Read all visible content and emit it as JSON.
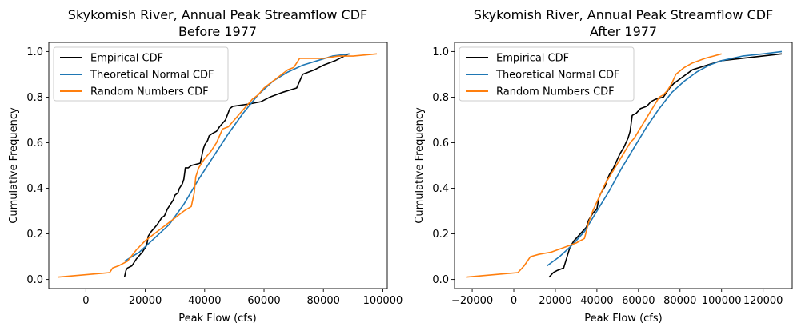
{
  "chart_data": [
    {
      "type": "line",
      "title": "Skykomish River, Annual Peak Streamflow CDF",
      "subtitle": "Before 1977",
      "xlabel": "Peak Flow (cfs)",
      "ylabel": "Cumulative Frequency",
      "xlim": [
        -12500,
        101500
      ],
      "ylim": [
        -0.04,
        1.04
      ],
      "xticks": [
        0,
        20000,
        40000,
        60000,
        80000,
        100000
      ],
      "yticks": [
        0.0,
        0.2,
        0.4,
        0.6,
        0.8,
        1.0
      ],
      "xtick_labels": [
        "0",
        "20000",
        "40000",
        "60000",
        "80000",
        "100000"
      ],
      "ytick_labels": [
        "0.0",
        "0.2",
        "0.4",
        "0.6",
        "0.8",
        "1.0"
      ],
      "grid": false,
      "legend": "top-left",
      "series": [
        {
          "name": "Empirical CDF",
          "color": "#000000",
          "x": [
            13000,
            13500,
            14000,
            15500,
            17000,
            19000,
            20500,
            21000,
            22000,
            24000,
            25500,
            26500,
            27500,
            28500,
            29500,
            30000,
            31000,
            31500,
            32500,
            33000,
            33500,
            34500,
            35500,
            38500,
            39000,
            39500,
            40000,
            41000,
            41500,
            42500,
            44000,
            45000,
            47000,
            48500,
            49500,
            55000,
            59000,
            62000,
            66000,
            71000,
            72000,
            73000,
            77000,
            80000,
            84000,
            88500
          ],
          "y": [
            0.01,
            0.04,
            0.05,
            0.06,
            0.09,
            0.12,
            0.15,
            0.19,
            0.21,
            0.24,
            0.27,
            0.28,
            0.31,
            0.33,
            0.35,
            0.37,
            0.38,
            0.4,
            0.42,
            0.44,
            0.49,
            0.49,
            0.5,
            0.51,
            0.54,
            0.57,
            0.59,
            0.61,
            0.63,
            0.64,
            0.65,
            0.67,
            0.7,
            0.75,
            0.76,
            0.77,
            0.78,
            0.8,
            0.82,
            0.84,
            0.87,
            0.9,
            0.92,
            0.94,
            0.96,
            0.99
          ]
        },
        {
          "name": "Theoretical Normal CDF",
          "color": "#1f77b4",
          "x": [
            13000,
            18000,
            23000,
            28000,
            33000,
            38000,
            43000,
            48000,
            53000,
            58000,
            63000,
            68000,
            73000,
            78000,
            83000,
            89000
          ],
          "y": [
            0.08,
            0.12,
            0.18,
            0.24,
            0.33,
            0.44,
            0.54,
            0.64,
            0.73,
            0.81,
            0.87,
            0.91,
            0.94,
            0.96,
            0.98,
            0.99
          ]
        },
        {
          "name": "Random Numbers CDF",
          "color": "#ff7f0e",
          "x": [
            -9500,
            8000,
            9000,
            11000,
            14000,
            17000,
            20000,
            24000,
            27000,
            30000,
            33000,
            35500,
            36500,
            37000,
            38000,
            39000,
            40000,
            42000,
            44000,
            46000,
            48000,
            50000,
            52000,
            54000,
            56000,
            58000,
            60000,
            62000,
            64000,
            66000,
            68000,
            70000,
            72000,
            75000,
            80000,
            85000,
            90000,
            98000
          ],
          "y": [
            0.01,
            0.03,
            0.05,
            0.06,
            0.08,
            0.13,
            0.17,
            0.21,
            0.24,
            0.27,
            0.3,
            0.32,
            0.38,
            0.45,
            0.49,
            0.51,
            0.53,
            0.56,
            0.6,
            0.66,
            0.67,
            0.7,
            0.73,
            0.76,
            0.79,
            0.81,
            0.84,
            0.86,
            0.88,
            0.9,
            0.92,
            0.93,
            0.97,
            0.97,
            0.97,
            0.98,
            0.98,
            0.99
          ]
        }
      ]
    },
    {
      "type": "line",
      "title": "Skykomish River, Annual Peak Streamflow CDF",
      "subtitle": "After 1977",
      "xlabel": "Peak Flow (cfs)",
      "ylabel": "Cumulative Frequency",
      "xlim": [
        -28500,
        134000
      ],
      "ylim": [
        -0.04,
        1.04
      ],
      "xticks": [
        -20000,
        0,
        20000,
        40000,
        60000,
        80000,
        100000,
        120000
      ],
      "yticks": [
        0.0,
        0.2,
        0.4,
        0.6,
        0.8,
        1.0
      ],
      "xtick_labels": [
        "−20000",
        "0",
        "20000",
        "40000",
        "60000",
        "80000",
        "100000",
        "120000"
      ],
      "ytick_labels": [
        "0.0",
        "0.2",
        "0.4",
        "0.6",
        "0.8",
        "1.0"
      ],
      "grid": false,
      "legend": "top-left",
      "series": [
        {
          "name": "Empirical CDF",
          "color": "#000000",
          "x": [
            17000,
            19000,
            21000,
            24000,
            26000,
            27000,
            29000,
            31000,
            33000,
            35000,
            36000,
            38000,
            40000,
            41000,
            42000,
            44000,
            45000,
            46000,
            48000,
            49000,
            51000,
            53000,
            55000,
            56000,
            57000,
            59000,
            61000,
            64000,
            66000,
            68000,
            72000,
            75000,
            77000,
            80000,
            86000,
            100000,
            129000
          ],
          "y": [
            0.01,
            0.03,
            0.04,
            0.05,
            0.11,
            0.14,
            0.17,
            0.19,
            0.21,
            0.23,
            0.26,
            0.29,
            0.31,
            0.36,
            0.38,
            0.41,
            0.44,
            0.46,
            0.49,
            0.51,
            0.55,
            0.58,
            0.62,
            0.65,
            0.72,
            0.73,
            0.75,
            0.76,
            0.78,
            0.79,
            0.8,
            0.84,
            0.86,
            0.88,
            0.92,
            0.96,
            0.99
          ]
        },
        {
          "name": "Theoretical Normal CDF",
          "color": "#1f77b4",
          "x": [
            16000,
            22000,
            28000,
            34000,
            40000,
            46000,
            52000,
            58000,
            64000,
            70000,
            76000,
            82000,
            88000,
            94000,
            100000,
            110000,
            120000,
            129000
          ],
          "y": [
            0.06,
            0.1,
            0.15,
            0.21,
            0.3,
            0.39,
            0.49,
            0.58,
            0.67,
            0.75,
            0.82,
            0.87,
            0.91,
            0.94,
            0.96,
            0.98,
            0.99,
            1.0
          ]
        },
        {
          "name": "Random Numbers CDF",
          "color": "#ff7f0e",
          "x": [
            -23000,
            2000,
            5000,
            8000,
            12000,
            18000,
            24000,
            30000,
            34000,
            36000,
            38000,
            40000,
            42000,
            44000,
            46000,
            48000,
            50000,
            52000,
            54000,
            56000,
            58000,
            60000,
            62000,
            64000,
            66000,
            68000,
            70000,
            72000,
            74000,
            76000,
            78000,
            82000,
            86000,
            92000,
            100000
          ],
          "y": [
            0.01,
            0.03,
            0.06,
            0.1,
            0.11,
            0.12,
            0.14,
            0.16,
            0.18,
            0.25,
            0.3,
            0.34,
            0.38,
            0.42,
            0.45,
            0.48,
            0.51,
            0.54,
            0.57,
            0.6,
            0.62,
            0.65,
            0.68,
            0.71,
            0.74,
            0.77,
            0.8,
            0.81,
            0.83,
            0.86,
            0.9,
            0.93,
            0.95,
            0.97,
            0.99
          ]
        }
      ]
    }
  ]
}
